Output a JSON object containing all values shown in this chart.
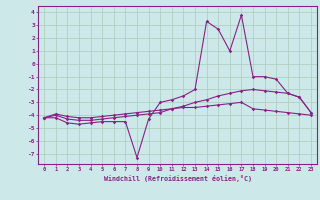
{
  "xlabel": "Windchill (Refroidissement éolien,°C)",
  "background_color": "#cce8e8",
  "grid_color": "#aaccbb",
  "line_color": "#882288",
  "x_hours": [
    0,
    1,
    2,
    3,
    4,
    5,
    6,
    7,
    8,
    9,
    10,
    11,
    12,
    13,
    14,
    15,
    16,
    17,
    18,
    19,
    20,
    21,
    22,
    23
  ],
  "series1": [
    -4.2,
    -4.2,
    -4.6,
    -4.7,
    -4.6,
    -4.5,
    -4.5,
    -4.5,
    -7.3,
    -4.3,
    -3.0,
    -2.8,
    -2.5,
    -2.0,
    3.3,
    2.7,
    1.0,
    3.8,
    -1.0,
    -1.0,
    -1.2,
    -2.3,
    -2.6,
    -3.8
  ],
  "series2": [
    -4.2,
    -4.0,
    -4.3,
    -4.4,
    -4.4,
    -4.3,
    -4.2,
    -4.1,
    -4.0,
    -3.9,
    -3.8,
    -3.5,
    -3.3,
    -3.0,
    -2.8,
    -2.5,
    -2.3,
    -2.1,
    -2.0,
    -2.1,
    -2.2,
    -2.3,
    -2.6,
    -3.8
  ],
  "series3": [
    -4.2,
    -3.9,
    -4.1,
    -4.2,
    -4.2,
    -4.1,
    -4.0,
    -3.9,
    -3.8,
    -3.7,
    -3.6,
    -3.5,
    -3.4,
    -3.4,
    -3.3,
    -3.2,
    -3.1,
    -3.0,
    -3.5,
    -3.6,
    -3.7,
    -3.8,
    -3.9,
    -4.0
  ],
  "ylim": [
    -7.8,
    4.5
  ],
  "yticks": [
    -7,
    -6,
    -5,
    -4,
    -3,
    -2,
    -1,
    0,
    1,
    2,
    3,
    4
  ],
  "xticks": [
    0,
    1,
    2,
    3,
    4,
    5,
    6,
    7,
    8,
    9,
    10,
    11,
    12,
    13,
    14,
    15,
    16,
    17,
    18,
    19,
    20,
    21,
    22,
    23
  ]
}
